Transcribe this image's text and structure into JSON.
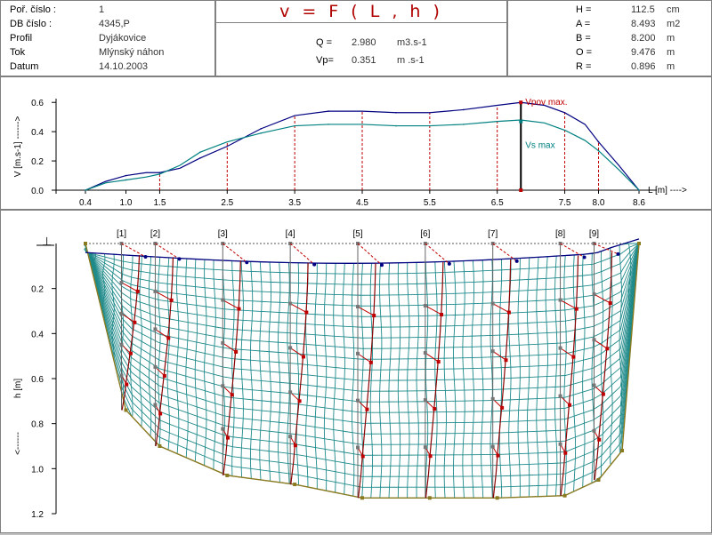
{
  "header_left": [
    {
      "label": "Poř. číslo :",
      "value": "1"
    },
    {
      "label": "DB  číslo :",
      "value": "4345,P"
    },
    {
      "label": "Profil",
      "value": "Dyjákovice"
    },
    {
      "label": "Tok",
      "value": "Mlýnský náhon"
    },
    {
      "label": "Datum",
      "value": "14.10.2003"
    }
  ],
  "header_center": {
    "title": "v  =  F ( L , h )",
    "rows": [
      {
        "label": "Q =",
        "value": "2.980",
        "unit": "m3.s-1"
      },
      {
        "label": "Vp=",
        "value": "0.351",
        "unit": "m .s-1"
      }
    ]
  },
  "header_right": [
    {
      "label": "H =",
      "value": "112.5",
      "unit": "cm"
    },
    {
      "label": "A =",
      "value": "8.493",
      "unit": "m2"
    },
    {
      "label": "B =",
      "value": "8.200",
      "unit": "m"
    },
    {
      "label": "O =",
      "value": "9.476",
      "unit": "m"
    },
    {
      "label": "R =",
      "value": "0.896",
      "unit": "m"
    }
  ],
  "chart_data": [
    {
      "type": "line",
      "ylabel": "V  [m.s-1]  ------>",
      "xlabel": "L [m]  ---->",
      "x_ticks": [
        "0.4",
        "1.0",
        "1.5",
        "2.5",
        "3.5",
        "4.5",
        "5.5",
        "6.5",
        "7.5",
        "8.0",
        "8.6"
      ],
      "x_tick_values": [
        0.4,
        1.0,
        1.5,
        2.5,
        3.5,
        4.5,
        5.5,
        6.5,
        7.5,
        8.0,
        8.6
      ],
      "y_ticks": [
        "0.0",
        "0.2",
        "0.4",
        "0.6"
      ],
      "xlim": [
        0.4,
        8.6
      ],
      "ylim": [
        0,
        0.65
      ],
      "verticals": [
        1.5,
        2.5,
        3.5,
        4.5,
        5.5,
        6.5,
        7.5,
        8.0
      ],
      "series": [
        {
          "name": "Vpov max.",
          "color": "#000080",
          "x": [
            0.4,
            0.7,
            1.0,
            1.3,
            1.5,
            1.8,
            2.1,
            2.5,
            3.0,
            3.5,
            4.0,
            4.5,
            5.0,
            5.5,
            6.0,
            6.5,
            6.85,
            7.2,
            7.5,
            7.8,
            8.0,
            8.3,
            8.6
          ],
          "y": [
            0.0,
            0.06,
            0.1,
            0.12,
            0.12,
            0.15,
            0.22,
            0.3,
            0.42,
            0.51,
            0.54,
            0.54,
            0.53,
            0.53,
            0.55,
            0.58,
            0.6,
            0.58,
            0.53,
            0.45,
            0.33,
            0.17,
            0.0
          ]
        },
        {
          "name": "Vs max",
          "color": "#008080",
          "x": [
            0.4,
            0.7,
            1.0,
            1.3,
            1.5,
            1.8,
            2.1,
            2.5,
            3.0,
            3.5,
            4.0,
            4.5,
            5.0,
            5.5,
            6.0,
            6.5,
            6.85,
            7.2,
            7.5,
            7.8,
            8.0,
            8.3,
            8.6
          ],
          "y": [
            0.0,
            0.05,
            0.07,
            0.09,
            0.11,
            0.17,
            0.26,
            0.33,
            0.39,
            0.44,
            0.45,
            0.45,
            0.44,
            0.44,
            0.45,
            0.47,
            0.48,
            0.46,
            0.41,
            0.34,
            0.27,
            0.14,
            0.0
          ]
        }
      ],
      "annotations": [
        {
          "text": "Vpov max.",
          "x": 6.85,
          "y": 0.6,
          "color": "#c00000"
        },
        {
          "text": "Vs max",
          "x": 6.85,
          "y": 0.47,
          "color": "#008080"
        }
      ],
      "max_marker_x": 6.85
    },
    {
      "type": "cross-section",
      "ylabel": "h  [m]",
      "y_ticks": [
        "0.2",
        "0.4",
        "0.6",
        "0.8",
        "1.0",
        "1.2"
      ],
      "y_tick_values": [
        0.2,
        0.4,
        0.6,
        0.8,
        1.0,
        1.2
      ],
      "ylim": [
        0,
        1.2
      ],
      "verticals": [
        {
          "label": "[1]",
          "x": 1.0,
          "depth": 0.74
        },
        {
          "label": "[2]",
          "x": 1.5,
          "depth": 0.9
        },
        {
          "label": "[3]",
          "x": 2.5,
          "depth": 1.03
        },
        {
          "label": "[4]",
          "x": 3.5,
          "depth": 1.07
        },
        {
          "label": "[5]",
          "x": 4.5,
          "depth": 1.13
        },
        {
          "label": "[6]",
          "x": 5.5,
          "depth": 1.13
        },
        {
          "label": "[7]",
          "x": 6.5,
          "depth": 1.13
        },
        {
          "label": "[8]",
          "x": 7.5,
          "depth": 1.12
        },
        {
          "label": "[9]",
          "x": 8.0,
          "depth": 1.05
        }
      ],
      "bank_left_x": 0.4,
      "bank_right_x": 8.6,
      "bank_right_depth": 1.02
    }
  ],
  "water_symbol": "⊥"
}
